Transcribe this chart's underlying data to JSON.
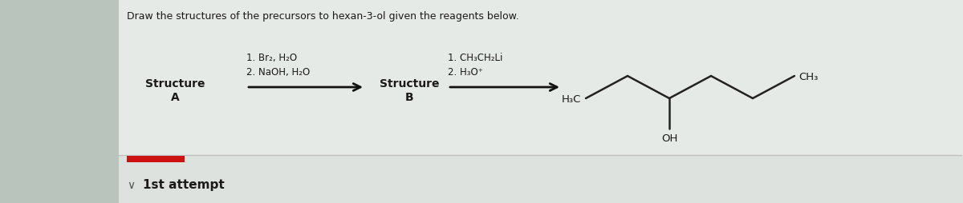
{
  "bg_left": "#b8c4be",
  "bg_right": "#dde3df",
  "bg_content": "#e8eae8",
  "title": "Draw the structures of the precursors to hexan-3-ol given the reagents below.",
  "title_fontsize": 9.0,
  "reagents1_line1": "1. Br₂, H₂O",
  "reagents1_line2": "2. NaOH, H₂O",
  "reagents2_line1": "1. CH₃CH₂Li",
  "reagents2_line2": "2. H₃O⁺",
  "struct_A_label": "Structure",
  "struct_A_sub": "A",
  "struct_B_label": "Structure",
  "struct_B_sub": "B",
  "attempt_text": "1st attempt",
  "red_color": "#cc1111",
  "separator_color": "#c0c0c0",
  "text_color": "#1a1a1a",
  "arrow_color": "#111111"
}
